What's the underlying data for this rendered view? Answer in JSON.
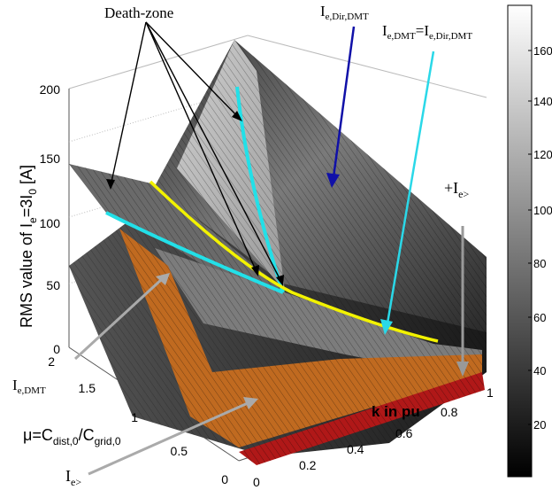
{
  "chart_data": {
    "type": "surface",
    "zlabel": {
      "main": "RMS value of I",
      "sub": "e",
      "mid": "=3I",
      "sub2": "0",
      "tail": " [A]"
    },
    "xlabel": "k in pu",
    "ylabel": {
      "mu": "μ",
      "eq": "=C",
      "sub1": "dist,0",
      "slash": "/C",
      "sub2": "grid,0"
    },
    "zlim": [
      0,
      200
    ],
    "xlim": [
      0,
      1
    ],
    "ylim": [
      0,
      2
    ],
    "z_ticks": [
      "200",
      "150",
      "100",
      "50",
      "0"
    ],
    "x_ticks": [
      "0",
      "0.2",
      "0.4",
      "0.6",
      "0.8",
      "1"
    ],
    "y_ticks": [
      "2",
      "1.5",
      "1",
      "0.5",
      "0"
    ],
    "colorbar": {
      "range": [
        0,
        175
      ],
      "ticks": [
        "160",
        "140",
        "120",
        "100",
        "80",
        "60",
        "40",
        "20"
      ]
    },
    "surfaces": [
      {
        "name": "I_e,Dir,DMT",
        "color": "#f0f0f0"
      },
      {
        "name": "I_e,DMT",
        "color": "#808080"
      },
      {
        "name": "I_e>",
        "color": "#c06a20"
      },
      {
        "name": "+I_e>",
        "color": "#b01818"
      }
    ],
    "annotations": {
      "death_zone": "Death-zone",
      "i_dir_dmt": {
        "main": "I",
        "sub": "e,Dir,DMT"
      },
      "i_eq": {
        "main": "I",
        "sub": "e,DMT",
        "mid": "=I",
        "sub2": "e,Dir,DMT"
      },
      "plus_ie": {
        "main": "+I",
        "sub": "e>"
      },
      "ie_dmt": {
        "main": "I",
        "sub": "e,DMT"
      },
      "ie": {
        "main": "I",
        "sub": "e>"
      }
    },
    "boundary_colors": {
      "cyan": "#22e0e8",
      "yellow": "#f2f200"
    }
  }
}
